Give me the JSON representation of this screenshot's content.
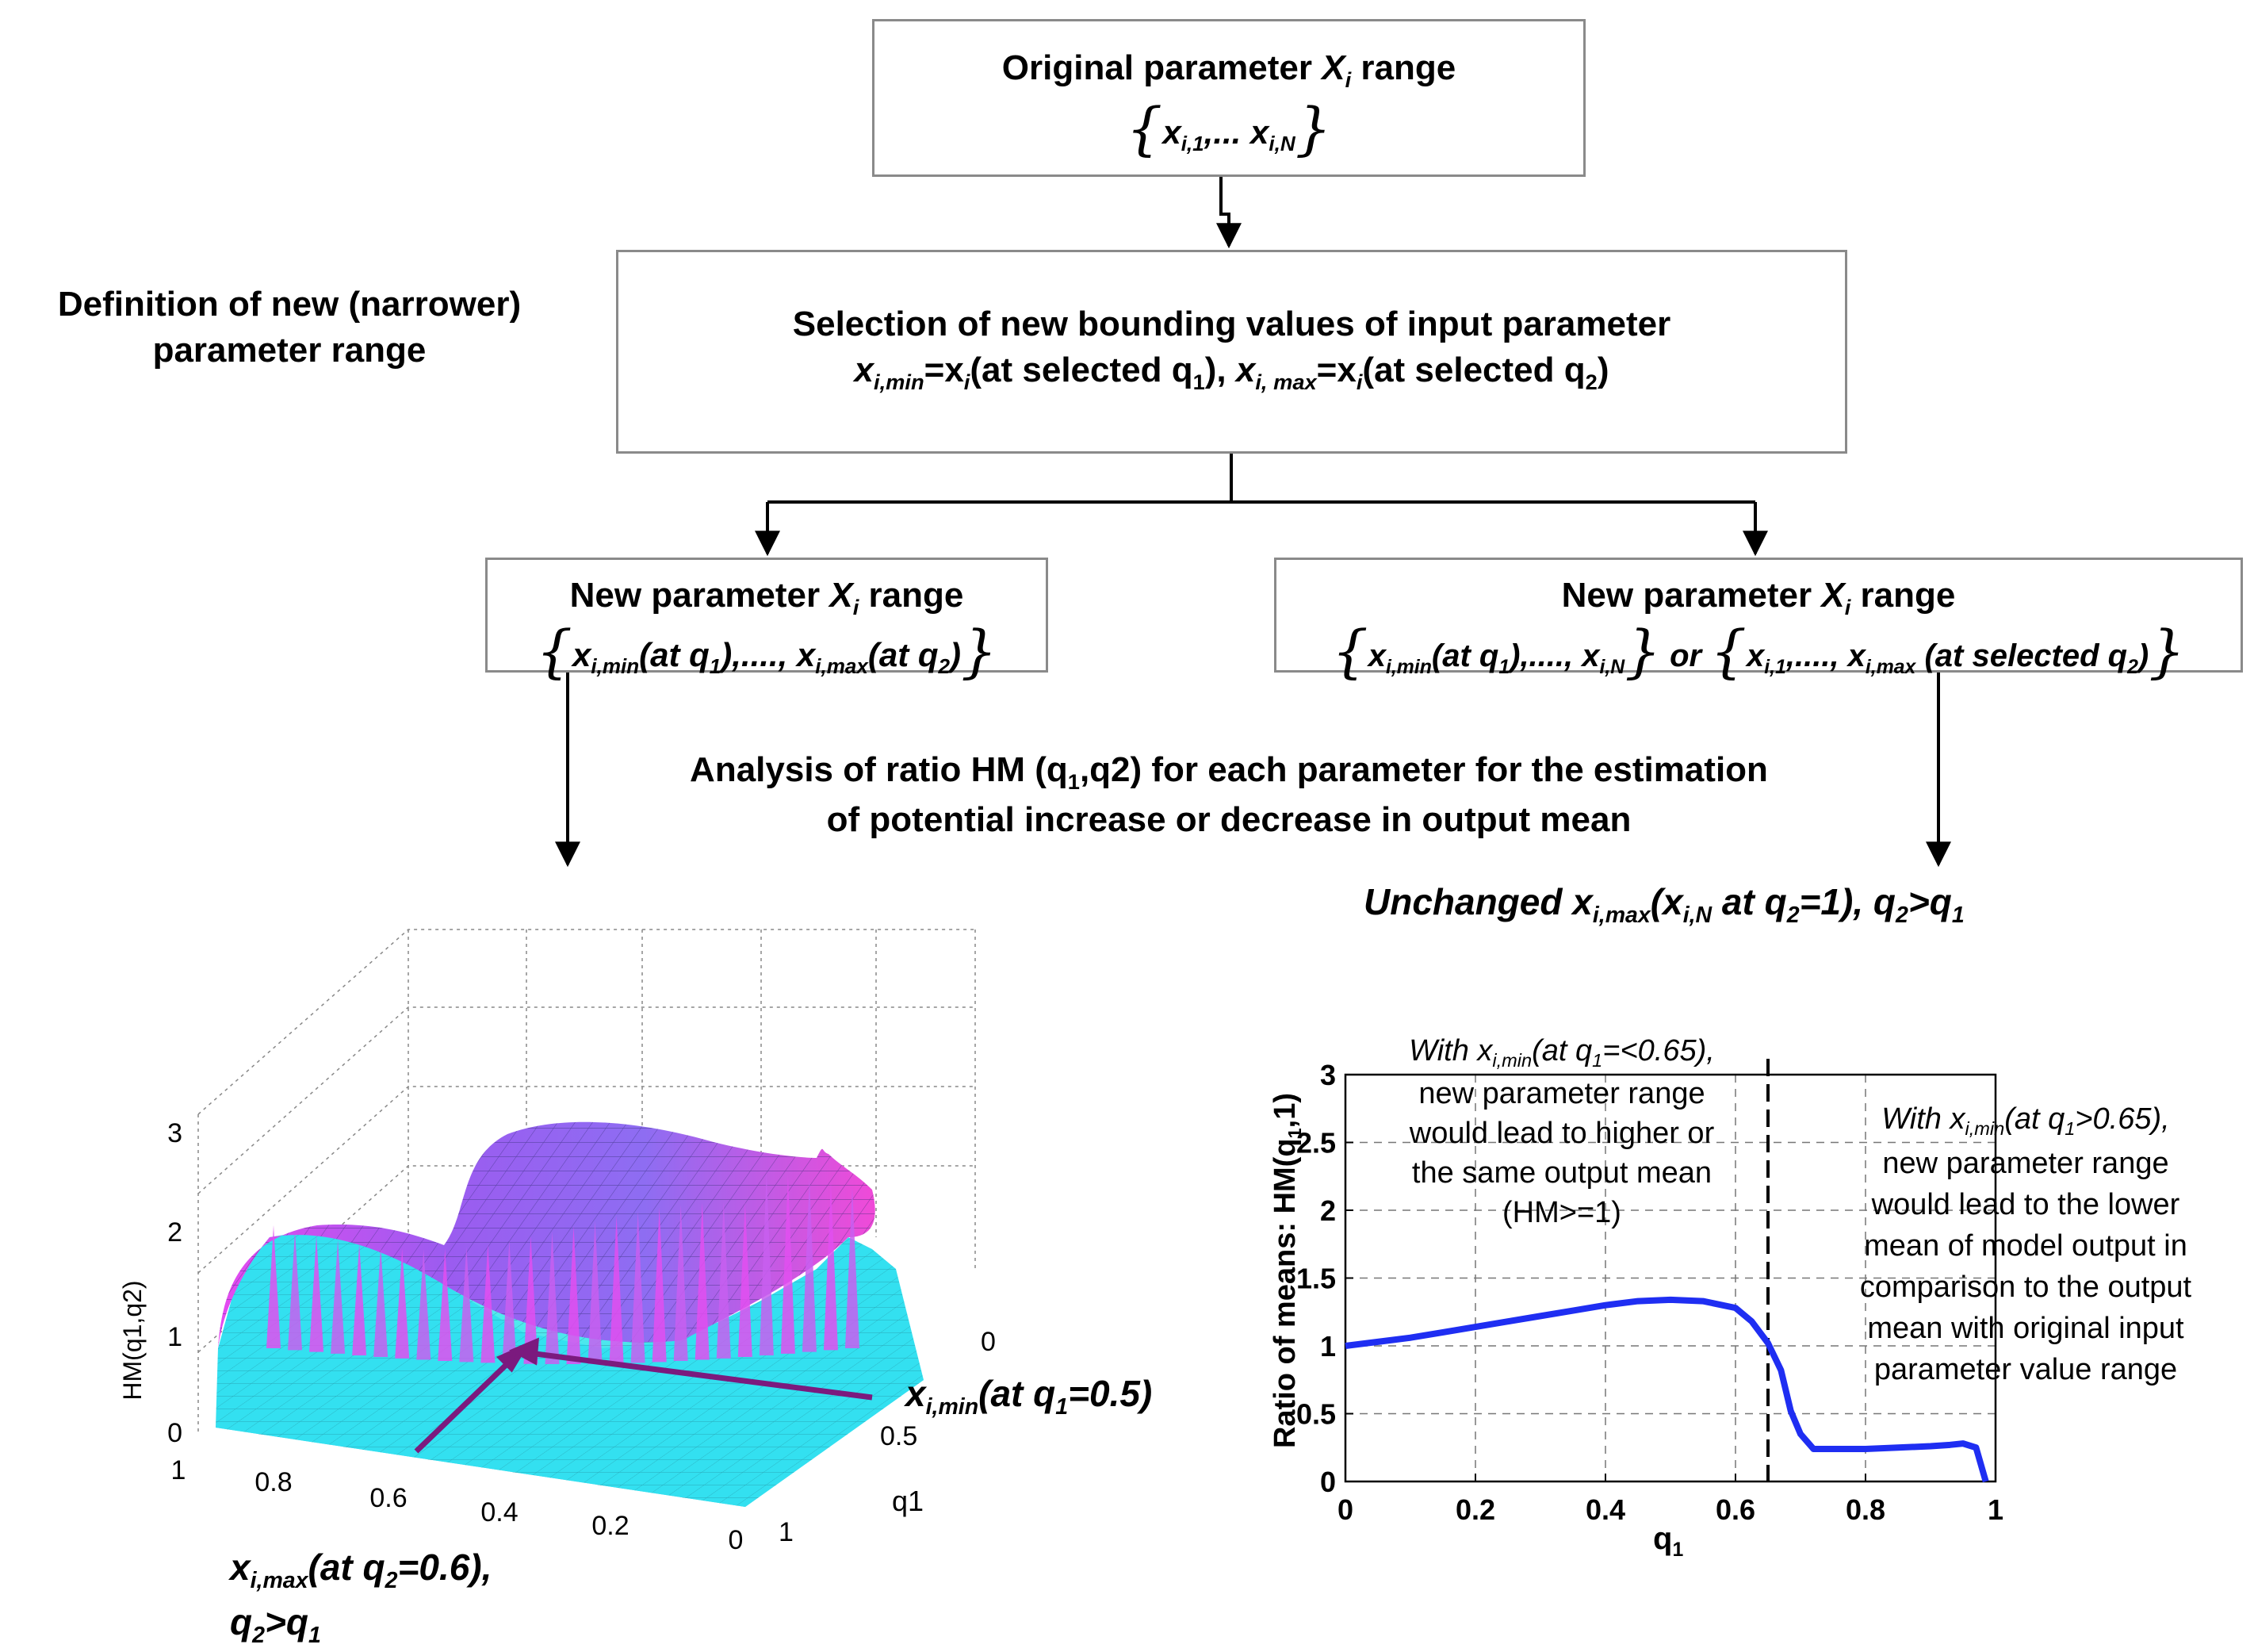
{
  "colors": {
    "box_border": "#8a8a8a",
    "arrow": "#000000",
    "surface_top": "#d94ff0",
    "surface_side": "#33e0f0",
    "purple_arrow": "#7b1a7e",
    "curve": "#1f2ef2"
  },
  "top_box": {
    "title": "Original parameter ",
    "title_var": "X",
    "title_sub": "i",
    "title_rest": " range",
    "set_a": "x",
    "set_a_sub": "i,1",
    "set_dots": ",... ",
    "set_b": "x",
    "set_b_sub": "i,N"
  },
  "side_label": {
    "line1": "Definition of new (narrower)",
    "line2": "parameter range"
  },
  "mid_box": {
    "line1": "Selection of new bounding values of input parameter",
    "p1": "x",
    "p1_sub": "i,min",
    "p2": "=x",
    "p2_sub": "i",
    "p3": "(at selected q",
    "p3_sub": "1",
    "p4": "), ",
    "p5": "x",
    "p5_sub": "i, max",
    "p6": "=x",
    "p6_sub": "i",
    "p7": "(at selected q",
    "p7_sub": "2",
    "p8": ")"
  },
  "left_box": {
    "title": "New parameter ",
    "title_var": "X",
    "title_sub": "i",
    "title_rest": " range",
    "s1": "x",
    "s1_sub": "i,min",
    "s2": "(at q",
    "s2_sub": "1",
    "s3": "),...., ",
    "s4": "x",
    "s4_sub": "i,max",
    "s5": "(at q",
    "s5_sub": "2",
    "s6": ")"
  },
  "right_box": {
    "title": "New parameter ",
    "title_var": "X",
    "title_sub": "i",
    "title_rest": " range",
    "a1": "x",
    "a1_sub": "i,min",
    "a2": "(at q",
    "a2_sub": "1",
    "a3": "),...., ",
    "a4": "x",
    "a4_sub": "i,N",
    "or": " or ",
    "b1": "x",
    "b1_sub": "i,1",
    "b2": ",...., ",
    "b3": "x",
    "b3_sub": "i,max",
    "b4": " (at selected q",
    "b4_sub": "2",
    "b5": ")"
  },
  "analysis": {
    "line1": "Analysis of ratio HM (q",
    "line1_sub": "1",
    "line1_rest": ",q2) for each parameter for the estimation",
    "line2": "of potential increase or decrease in output mean"
  },
  "unchanged": {
    "u1": "Unchanged ",
    "u2": "x",
    "u2_sub": "i,max",
    "u3": "(",
    "u4": "x",
    "u4_sub": "i,N",
    "u5": " at q",
    "u5_sub": "2",
    "u6": "=1), q",
    "u6_sub": "2",
    "u7": ">q",
    "u7_sub": "1"
  },
  "surface_plot": {
    "zlabel": "HM(q1,q2)",
    "zticks": [
      "0",
      "1",
      "2",
      "3"
    ],
    "xticks": [
      "1",
      "0.8",
      "0.6",
      "0.4",
      "0.2",
      "0"
    ],
    "yticks": [
      "0",
      "0.5",
      "1"
    ],
    "ylabel": "q1",
    "annot_right": {
      "a": "x",
      "a_sub": "i,min",
      "b": "(at q",
      "b_sub": "1",
      "c": "=0.5)"
    },
    "annot_bottom": {
      "a": "x",
      "a_sub": "i,max",
      "b": "(at q",
      "b_sub": "2",
      "c": "=0.6),",
      "d": "q",
      "d_sub": "2",
      "e": ">q",
      "e_sub": "1"
    }
  },
  "chart_data": {
    "type": "line",
    "title": "",
    "xlabel": "q",
    "xlabel_sub": "1",
    "ylabel": "Ratio of means: HM(q",
    "ylabel_sub": "1",
    "ylabel_rest": ",1)",
    "xlim": [
      0,
      1
    ],
    "ylim": [
      0,
      3
    ],
    "xticks": [
      0,
      0.2,
      0.4,
      0.6,
      0.8,
      1
    ],
    "xtick_labels": [
      "0",
      "0.2",
      "0.4",
      "0.6",
      "0.8",
      "1"
    ],
    "yticks": [
      0,
      0.5,
      1,
      1.5,
      2,
      2.5,
      3
    ],
    "ytick_labels": [
      "0",
      "0.5",
      "1",
      "1.5",
      "2",
      "2.5",
      "3"
    ],
    "grid": true,
    "vline_x": 0.65,
    "series": [
      {
        "name": "HM(q1,1)",
        "x": [
          0,
          0.05,
          0.1,
          0.15,
          0.2,
          0.25,
          0.3,
          0.35,
          0.4,
          0.45,
          0.5,
          0.55,
          0.6,
          0.625,
          0.65,
          0.67,
          0.685,
          0.7,
          0.72,
          0.75,
          0.8,
          0.85,
          0.9,
          0.93,
          0.95,
          0.97,
          0.985
        ],
        "y": [
          1.0,
          1.03,
          1.06,
          1.1,
          1.14,
          1.18,
          1.22,
          1.26,
          1.3,
          1.33,
          1.34,
          1.33,
          1.28,
          1.18,
          1.02,
          0.82,
          0.52,
          0.35,
          0.24,
          0.24,
          0.24,
          0.25,
          0.26,
          0.27,
          0.28,
          0.25,
          0.0
        ]
      }
    ],
    "annotations": {
      "left": {
        "l1a": "With ",
        "l1b": "x",
        "l1b_sub": "i,min",
        "l1c": "(at q",
        "l1c_sub": "1",
        "l1d": "=<0.65),",
        "l2": "new parameter range",
        "l3": "would lead to higher or",
        "l4": "the same output mean",
        "l5": "(HM>=1)"
      },
      "right": {
        "l1a": "With ",
        "l1b": "x",
        "l1b_sub": "i,min",
        "l1c": "(at q",
        "l1c_sub": "1",
        "l1d": ">0.65),",
        "l2": "new parameter range",
        "l3": "would lead to the lower",
        "l4": "mean of model output in",
        "l5": "comparison to the output",
        "l6": "mean with original input",
        "l7": "parameter value range"
      }
    }
  }
}
